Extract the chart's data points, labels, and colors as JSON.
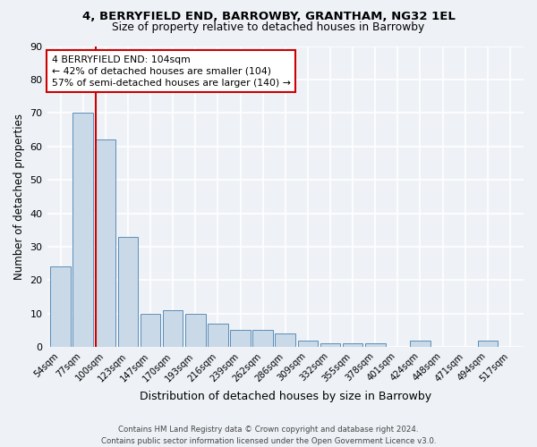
{
  "title1": "4, BERRYFIELD END, BARROWBY, GRANTHAM, NG32 1EL",
  "title2": "Size of property relative to detached houses in Barrowby",
  "xlabel": "Distribution of detached houses by size in Barrowby",
  "ylabel": "Number of detached properties",
  "categories": [
    "54sqm",
    "77sqm",
    "100sqm",
    "123sqm",
    "147sqm",
    "170sqm",
    "193sqm",
    "216sqm",
    "239sqm",
    "262sqm",
    "286sqm",
    "309sqm",
    "332sqm",
    "355sqm",
    "378sqm",
    "401sqm",
    "424sqm",
    "448sqm",
    "471sqm",
    "494sqm",
    "517sqm"
  ],
  "values": [
    24,
    70,
    62,
    33,
    10,
    11,
    10,
    7,
    5,
    5,
    4,
    2,
    1,
    1,
    1,
    0,
    2,
    0,
    0,
    2,
    0
  ],
  "bar_color": "#c9d9e8",
  "bar_edge_color": "#5b8db8",
  "vline_x_index": 2,
  "vline_color": "#cc0000",
  "annotation_text": "4 BERRYFIELD END: 104sqm\n← 42% of detached houses are smaller (104)\n57% of semi-detached houses are larger (140) →",
  "annotation_box_color": "#ffffff",
  "annotation_box_edge_color": "#cc0000",
  "ylim": [
    0,
    90
  ],
  "yticks": [
    0,
    10,
    20,
    30,
    40,
    50,
    60,
    70,
    80,
    90
  ],
  "background_color": "#eef2f7",
  "grid_color": "#ffffff",
  "footer": "Contains HM Land Registry data © Crown copyright and database right 2024.\nContains public sector information licensed under the Open Government Licence v3.0."
}
